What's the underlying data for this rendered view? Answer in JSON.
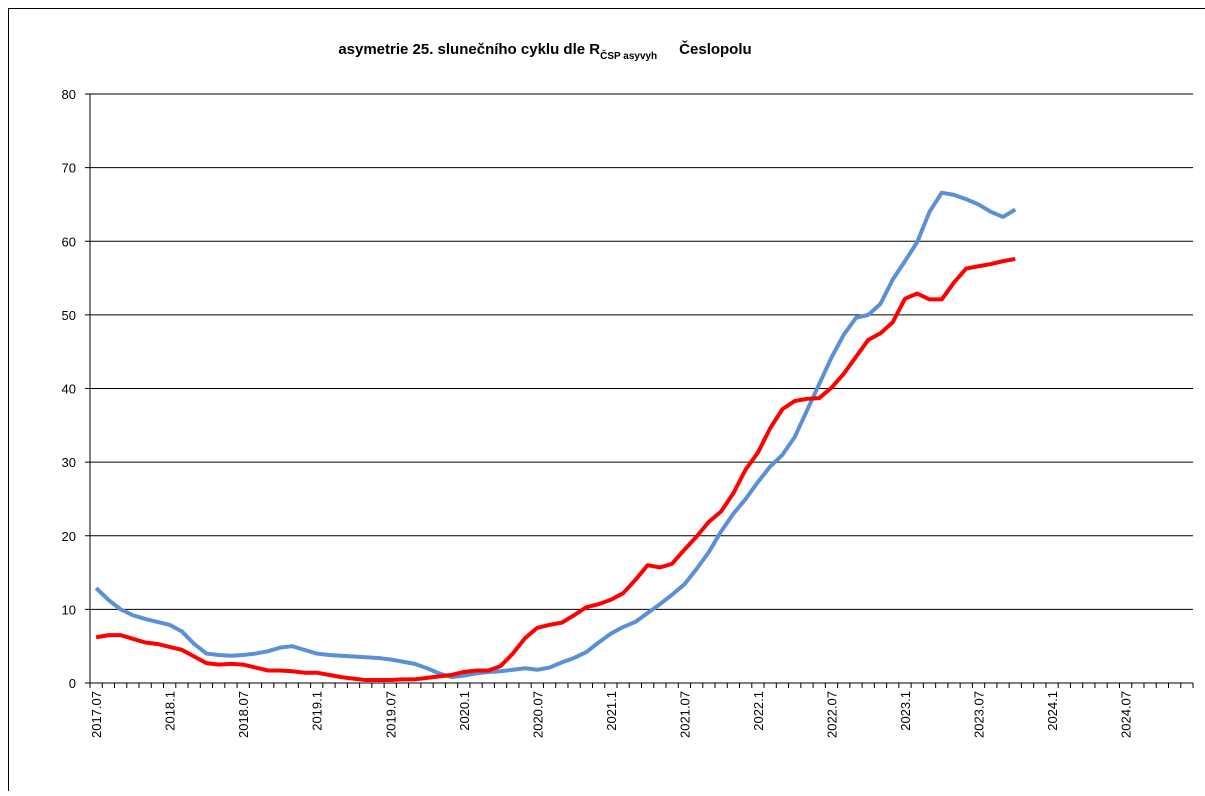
{
  "chart_data": {
    "type": "line",
    "title": "asymetrie 25. slunečního cyklu dle R",
    "title_subscript": "ČSP asyvyh",
    "title_suffix": "Česlopolu",
    "categories": [
      "2017.07",
      null,
      null,
      null,
      null,
      null,
      "2018.1",
      null,
      null,
      null,
      null,
      null,
      "2018.07",
      null,
      null,
      null,
      null,
      null,
      "2019.1",
      null,
      null,
      null,
      null,
      null,
      "2019.07",
      null,
      null,
      null,
      null,
      null,
      "2020.1",
      null,
      null,
      null,
      null,
      null,
      "2020.07",
      null,
      null,
      null,
      null,
      null,
      "2021.1",
      null,
      null,
      null,
      null,
      null,
      "2021.07",
      null,
      null,
      null,
      null,
      null,
      "2022.1",
      null,
      null,
      null,
      null,
      null,
      "2022.07",
      null,
      null,
      null,
      null,
      null,
      "2023.1",
      null,
      null,
      null,
      null,
      null,
      "2023.07",
      null,
      null,
      null,
      null,
      null,
      "2024.1",
      null,
      null,
      null,
      null,
      null,
      "2024.07",
      null,
      null,
      null,
      null,
      null
    ],
    "series": [
      {
        "color": "#5b8fd6",
        "values": [
          12.9,
          11.3,
          10.0,
          9.2,
          8.7,
          8.3,
          7.9,
          7.0,
          5.3,
          4.0,
          3.8,
          3.7,
          3.8,
          4.0,
          4.3,
          4.8,
          5.0,
          4.5,
          4.0,
          3.8,
          3.7,
          3.6,
          3.5,
          3.4,
          3.2,
          2.9,
          2.6,
          2.0,
          1.3,
          0.8,
          1.0,
          1.3,
          1.5,
          1.6,
          1.8,
          2.0,
          1.8,
          2.1,
          2.8,
          3.4,
          4.2,
          5.5,
          6.7,
          7.6,
          8.3,
          9.5,
          10.7,
          12.0,
          13.4,
          15.5,
          17.8,
          20.6,
          23.0,
          25.0,
          27.3,
          29.4,
          31.0,
          33.4,
          37.0,
          40.6,
          44.2,
          47.3,
          49.6,
          50.0,
          51.5,
          54.8,
          57.3,
          59.9,
          64.0,
          66.6,
          66.3,
          65.7,
          65.0,
          64.0,
          63.3,
          64.3,
          null,
          null,
          null,
          null,
          null,
          null,
          null,
          null,
          null,
          null,
          null,
          null,
          null,
          null
        ]
      },
      {
        "color": "#ff0000",
        "values": [
          6.2,
          6.5,
          6.5,
          6.0,
          5.5,
          5.3,
          4.9,
          4.5,
          3.6,
          2.7,
          2.5,
          2.6,
          2.5,
          2.1,
          1.7,
          1.7,
          1.6,
          1.4,
          1.4,
          1.1,
          0.8,
          0.6,
          0.4,
          0.4,
          0.4,
          0.5,
          0.5,
          0.7,
          0.9,
          1.1,
          1.5,
          1.7,
          1.7,
          2.3,
          4.0,
          6.1,
          7.5,
          7.9,
          8.2,
          9.2,
          10.3,
          10.7,
          11.3,
          12.2,
          14.0,
          16.0,
          15.7,
          16.2,
          18.1,
          19.9,
          21.9,
          23.3,
          25.8,
          29.0,
          31.3,
          34.6,
          37.2,
          38.3,
          38.6,
          38.7,
          40.1,
          42.0,
          44.3,
          46.6,
          47.5,
          49.0,
          52.2,
          52.9,
          52.1,
          52.1,
          54.4,
          56.3,
          56.6,
          56.9,
          57.3,
          57.6,
          null,
          null,
          null,
          null,
          null,
          null,
          null,
          null,
          null,
          null,
          null,
          null,
          null,
          null
        ]
      }
    ],
    "ylim": [
      0,
      80
    ],
    "yticks": [
      0,
      10,
      20,
      30,
      40,
      50,
      60,
      70,
      80
    ],
    "grid": true
  }
}
